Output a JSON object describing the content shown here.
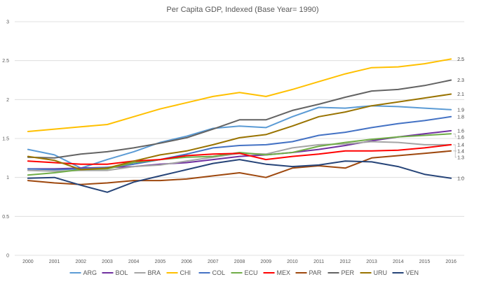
{
  "chart_data": {
    "type": "line",
    "title": "Per Capita GDP, Indexed (Base Year= 1990)",
    "xlabel": "",
    "ylabel": "",
    "ylim": [
      0,
      3
    ],
    "yticks": [
      "0",
      "0.5",
      "1",
      "1.5",
      "2",
      "2.5",
      "3"
    ],
    "grid": true,
    "legend": "bottom",
    "x": [
      "2000",
      "2001",
      "2002",
      "2003",
      "2004",
      "2005",
      "2006",
      "2007",
      "2008",
      "2009",
      "2010",
      "2011",
      "2012",
      "2013",
      "2014",
      "2015",
      "2016"
    ],
    "series": [
      {
        "name": "ARG",
        "color": "#5b9bd5",
        "values": [
          1.36,
          1.29,
          1.12,
          1.23,
          1.33,
          1.45,
          1.53,
          1.63,
          1.66,
          1.64,
          1.78,
          1.9,
          1.89,
          1.92,
          1.91,
          1.89,
          1.87
        ]
      },
      {
        "name": "BOL",
        "color": "#7030a0",
        "values": [
          1.11,
          1.11,
          1.12,
          1.13,
          1.14,
          1.17,
          1.19,
          1.23,
          1.27,
          1.29,
          1.32,
          1.36,
          1.41,
          1.47,
          1.52,
          1.56,
          1.6
        ]
      },
      {
        "name": "BRA",
        "color": "#a5a5a5",
        "values": [
          1.09,
          1.08,
          1.09,
          1.09,
          1.14,
          1.16,
          1.21,
          1.26,
          1.31,
          1.3,
          1.38,
          1.42,
          1.43,
          1.46,
          1.45,
          1.42,
          1.42
        ]
      },
      {
        "name": "CHI",
        "color": "#ffc000",
        "values": [
          1.59,
          1.62,
          1.65,
          1.68,
          1.78,
          1.88,
          1.96,
          2.04,
          2.09,
          2.04,
          2.13,
          2.23,
          2.33,
          2.41,
          2.42,
          2.46,
          2.52
        ]
      },
      {
        "name": "COL",
        "color": "#4472c4",
        "values": [
          1.11,
          1.1,
          1.11,
          1.13,
          1.17,
          1.23,
          1.3,
          1.38,
          1.41,
          1.42,
          1.46,
          1.54,
          1.58,
          1.64,
          1.69,
          1.73,
          1.78
        ]
      },
      {
        "name": "ECU",
        "color": "#70ad47",
        "values": [
          1.03,
          1.06,
          1.1,
          1.11,
          1.19,
          1.23,
          1.26,
          1.27,
          1.32,
          1.29,
          1.32,
          1.4,
          1.45,
          1.49,
          1.52,
          1.54,
          1.56
        ]
      },
      {
        "name": "MEX",
        "color": "#ff0000",
        "values": [
          1.21,
          1.19,
          1.17,
          1.17,
          1.21,
          1.23,
          1.28,
          1.3,
          1.31,
          1.23,
          1.27,
          1.3,
          1.34,
          1.34,
          1.35,
          1.38,
          1.42
        ]
      },
      {
        "name": "PAR",
        "color": "#9e480e",
        "values": [
          0.96,
          0.93,
          0.91,
          0.93,
          0.96,
          0.96,
          0.98,
          1.02,
          1.06,
          1.0,
          1.12,
          1.15,
          1.12,
          1.25,
          1.28,
          1.31,
          1.34
        ]
      },
      {
        "name": "PER",
        "color": "#636363",
        "values": [
          1.26,
          1.25,
          1.3,
          1.33,
          1.38,
          1.44,
          1.51,
          1.62,
          1.74,
          1.74,
          1.86,
          1.94,
          2.03,
          2.11,
          2.13,
          2.18,
          2.25
        ]
      },
      {
        "name": "URU",
        "color": "#997300",
        "values": [
          1.27,
          1.22,
          1.1,
          1.12,
          1.21,
          1.29,
          1.34,
          1.42,
          1.51,
          1.55,
          1.66,
          1.78,
          1.84,
          1.92,
          1.97,
          2.02,
          2.07
        ]
      },
      {
        "name": "VEN",
        "color": "#264478",
        "values": [
          0.99,
          1.0,
          0.9,
          0.81,
          0.94,
          1.02,
          1.1,
          1.18,
          1.23,
          1.17,
          1.14,
          1.16,
          1.21,
          1.2,
          1.14,
          1.04,
          0.99
        ]
      }
    ],
    "end_labels": [
      {
        "series": "CHI",
        "label": "2.5"
      },
      {
        "series": "PER",
        "label": "2.3"
      },
      {
        "series": "URU",
        "label": "2.1"
      },
      {
        "series": "ARG",
        "label": "1.9"
      },
      {
        "series": "COL",
        "label": "1.8"
      },
      {
        "series": "BOL",
        "label": "1.6"
      },
      {
        "series": "ECU",
        "label": "1.6"
      },
      {
        "series": "BRA",
        "label": "1.4"
      },
      {
        "series": "MEX",
        "label": "1.4"
      },
      {
        "series": "PAR",
        "label": "1.3"
      },
      {
        "series": "VEN",
        "label": "1.0"
      }
    ]
  }
}
